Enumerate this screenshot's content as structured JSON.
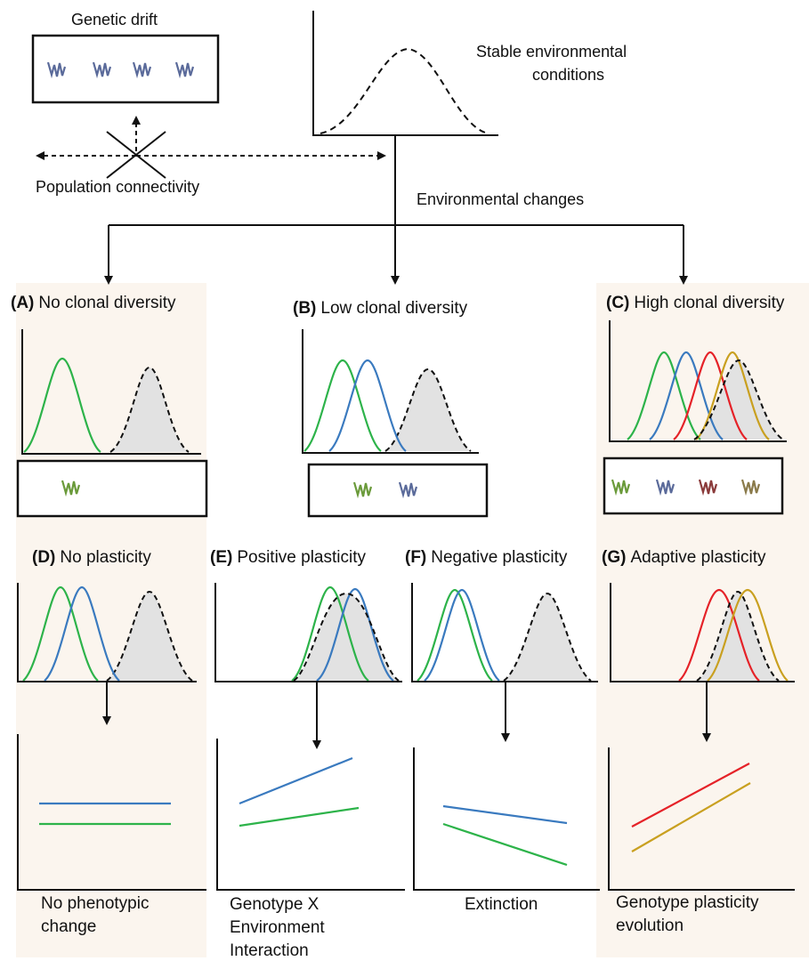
{
  "top": {
    "genetic_drift": "Genetic drift",
    "population_connectivity": "Population connectivity",
    "stable_conditions_line1": "Stable environmental",
    "stable_conditions_line2": "conditions",
    "environmental_changes": "Environmental changes"
  },
  "diversity_panels": [
    {
      "letter": "(A)",
      "title": "No clonal diversity"
    },
    {
      "letter": "(B)",
      "title": "Low clonal diversity"
    },
    {
      "letter": "(C)",
      "title": "High clonal diversity"
    }
  ],
  "plasticity_panels": [
    {
      "letter": "(D)",
      "title": "No plasticity",
      "caption_line1": "No phenotypic",
      "caption_line2": "change",
      "caption_line3": ""
    },
    {
      "letter": "(E)",
      "title": "Positive plasticity",
      "caption_line1": "Genotype X",
      "caption_line2": "Environment",
      "caption_line3": "Interaction"
    },
    {
      "letter": "(F)",
      "title": "Negative plasticity",
      "caption_line1": "Extinction",
      "caption_line2": "",
      "caption_line3": ""
    },
    {
      "letter": "(G)",
      "title": "Adaptive plasticity",
      "caption_line1": "Genotype plasticity",
      "caption_line2": "evolution",
      "caption_line3": ""
    }
  ],
  "colors": {
    "green": "#2db34a",
    "blue": "#3a7abf",
    "red": "#e52228",
    "gold": "#c9a020",
    "shade": "#fbf5ee",
    "fill": "#e2e2e2",
    "clone_green": "#6a9a3a",
    "clone_blue": "#5a6a9a",
    "clone_red": "#8a3a3a",
    "clone_olive": "#8a7a4a"
  },
  "icons": [
    "seagrass-clone-icon"
  ]
}
